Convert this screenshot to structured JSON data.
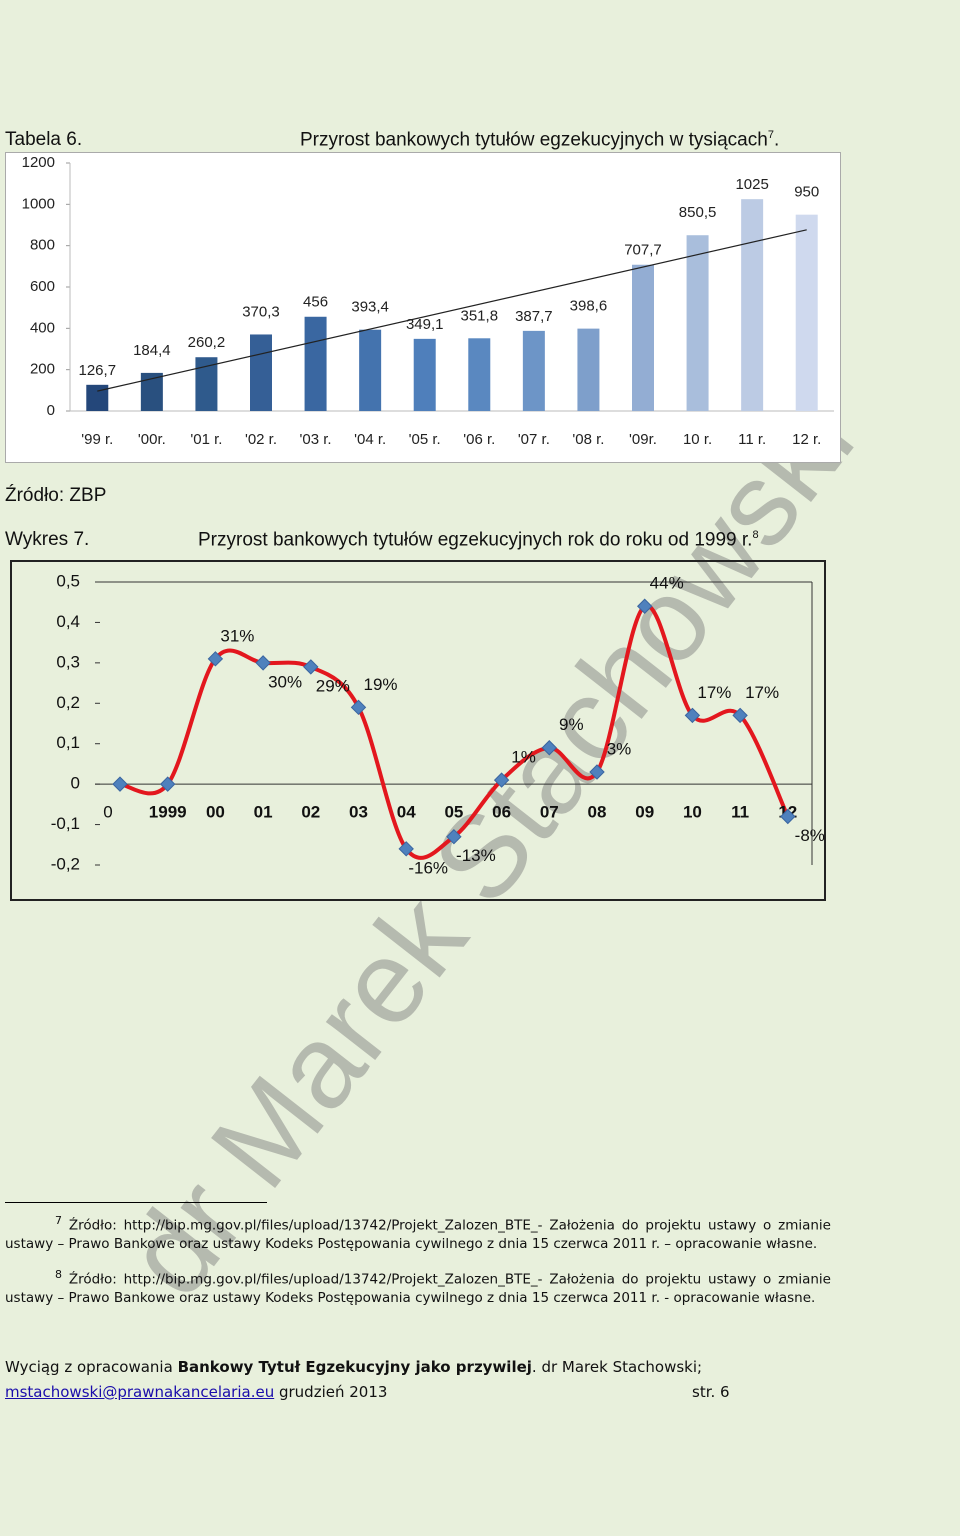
{
  "header": {
    "label": "Tabela 6.",
    "title": "Przyrost bankowych tytułów egzekucyjnych w tysiącach",
    "note_ref": "7"
  },
  "chart_data": [
    {
      "type": "bar",
      "categories": [
        "'99 r.",
        "'00r.",
        "'01 r.",
        "'02 r.",
        "'03 r.",
        "'04 r.",
        "'05 r.",
        "'06 r.",
        "'07 r.",
        "'08 r.",
        "'09r.",
        "10 r.",
        "11 r.",
        "12 r."
      ],
      "values": [
        126.7,
        184.4,
        260.2,
        370.3,
        456,
        393.4,
        349.1,
        351.8,
        387.7,
        398.6,
        707.7,
        850.5,
        1025,
        950
      ],
      "value_labels": [
        "126,7",
        "184,4",
        "260,2",
        "370,3",
        "456",
        "393,4",
        "349,1",
        "351,8",
        "387,7",
        "398,6",
        "707,7",
        "850,5",
        "1025",
        "950"
      ],
      "colors": [
        "#24477a",
        "#29507f",
        "#2f5a8c",
        "#355f96",
        "#3a67a1",
        "#4473ae",
        "#4f7fbb",
        "#5a88c0",
        "#6d95c7",
        "#7e9fcb",
        "#93add3",
        "#a9bedc",
        "#bccbe4",
        "#cfd9ee"
      ],
      "ylim": [
        0,
        1200
      ],
      "yticks": [
        0,
        200,
        400,
        600,
        800,
        1000,
        1200
      ],
      "trendline": true
    },
    {
      "type": "line",
      "title": "Przyrost bankowych tytułów egzekucyjnych rok do roku od 1999 r.",
      "categories": [
        "0",
        "1999",
        "00",
        "01",
        "02",
        "03",
        "04",
        "05",
        "06",
        "07",
        "08",
        "09",
        "10",
        "11",
        "12"
      ],
      "values": [
        0,
        0,
        0.31,
        0.3,
        0.29,
        0.19,
        -0.16,
        -0.13,
        0.01,
        0.09,
        0.03,
        0.44,
        0.17,
        0.17,
        -0.08
      ],
      "value_labels": [
        null,
        null,
        "31%",
        "30%",
        "29%",
        "19%",
        "-16%",
        "-13%",
        "1%",
        "9%",
        "3%",
        "44%",
        "17%",
        "17%",
        "-8%"
      ],
      "color": "#e3171e",
      "marker_color": "#4f81bd",
      "ylim": [
        -0.2,
        0.5
      ],
      "yticks": [
        {
          "value": -0.2,
          "label": "-0,2"
        },
        {
          "value": -0.1,
          "label": "-0,1"
        },
        0,
        {
          "value": 0.1,
          "label": "0,1"
        },
        {
          "value": 0.2,
          "label": "0,2"
        },
        {
          "value": 0.3,
          "label": "0,3"
        },
        {
          "value": 0.4,
          "label": "0,4"
        },
        {
          "value": 0.5,
          "label": "0,5"
        }
      ]
    }
  ],
  "source": "Źródło: ZBP",
  "figure": {
    "label": "Wykres 7.",
    "note_ref": "8"
  },
  "watermark": "dr Marek Stachowski",
  "footnotes": [
    {
      "ref": "7",
      "text": "Źródło: http://bip.mg.gov.pl/files/upload/13742/Projekt_Zalozen_BTE_- Założenia do projektu ustawy o zmianie ustawy – Prawo Bankowe oraz ustawy Kodeks Postępowania cywilnego z dnia 15 czerwca 2011 r. – opracowanie własne."
    },
    {
      "ref": "8",
      "text": "Źródło: http://bip.mg.gov.pl/files/upload/13742/Projekt_Zalozen_BTE_- Założenia do projektu ustawy o zmianie ustawy – Prawo Bankowe oraz ustawy Kodeks Postępowania cywilnego z dnia 15 czerwca 2011 r. - opracowanie własne."
    }
  ],
  "footer": {
    "prefix": "Wyciąg z opracowania",
    "work": "Bankowy Tytuł Egzekucyjny jako przywilej",
    "author": ". dr Marek Stachowski;",
    "email": "mstachowski@prawnakancelaria.eu",
    "date": "grudzień 2013",
    "page": "str. 6"
  }
}
